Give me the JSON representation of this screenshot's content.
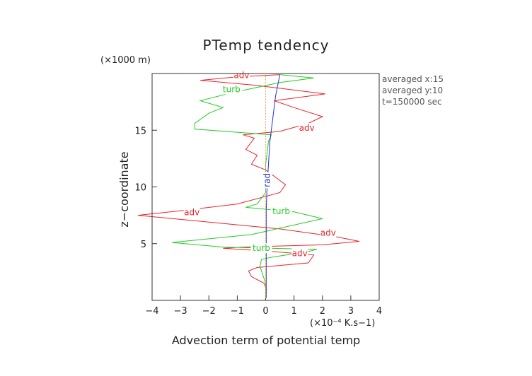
{
  "chart_data": {
    "type": "line",
    "title": "PTemp tendency",
    "xlabel": "Advection term of potential temp",
    "ylabel": "z−coordinate",
    "x_unit": "(×10⁻⁴ K.s−1)",
    "y_unit": "(×1000 m)",
    "xlim": [
      -4,
      4
    ],
    "ylim": [
      0,
      20
    ],
    "x_ticks": [
      -4,
      -3,
      -2,
      -1,
      0,
      1,
      2,
      3,
      4
    ],
    "y_ticks": [
      5,
      10,
      15
    ],
    "side_text": [
      "averaged  x:15",
      "averaged  y:10",
      "t=150000 sec"
    ],
    "series": [
      {
        "name": "adv",
        "color": "#e8242c",
        "points": [
          [
            0,
            0.2
          ],
          [
            0.02,
            1
          ],
          [
            -0.05,
            1.5
          ],
          [
            -0.5,
            2.1
          ],
          [
            -0.6,
            2.6
          ],
          [
            -0.3,
            2.9
          ],
          [
            1.5,
            3.3
          ],
          [
            1.7,
            4.0
          ],
          [
            0.3,
            4.3
          ],
          [
            -1.5,
            4.6
          ],
          [
            -0.8,
            4.7
          ],
          [
            2,
            4.9
          ],
          [
            3.3,
            5.2
          ],
          [
            2.5,
            5.6
          ],
          [
            0.5,
            6.3
          ],
          [
            -2,
            6.9
          ],
          [
            -4.5,
            7.5
          ],
          [
            -3,
            7.9
          ],
          [
            -1,
            8.5
          ],
          [
            0.5,
            9.5
          ],
          [
            0.7,
            10.2
          ],
          [
            0,
            11.5
          ],
          [
            -0.5,
            12
          ],
          [
            -0.3,
            12.8
          ],
          [
            -0.7,
            13.3
          ],
          [
            -0.4,
            14.3
          ],
          [
            -0.8,
            14.6
          ],
          [
            0.5,
            14.9
          ],
          [
            1.5,
            15.6
          ],
          [
            2,
            16.2
          ],
          [
            1,
            17
          ],
          [
            0.3,
            17.6
          ],
          [
            2.1,
            18.2
          ],
          [
            0.5,
            18.7
          ],
          [
            -0.5,
            19
          ],
          [
            -2.3,
            19.4
          ],
          [
            -1,
            19.7
          ],
          [
            0.5,
            19.9
          ]
        ],
        "labels": [
          {
            "text": "adv",
            "x": -2.6,
            "y": 7.75
          },
          {
            "text": "adv",
            "x": 2.2,
            "y": 5.95
          },
          {
            "text": "adv",
            "x": 1.2,
            "y": 4.15
          },
          {
            "text": "adv",
            "x": 1.45,
            "y": 15.2
          },
          {
            "text": "adv",
            "x": -0.85,
            "y": 19.85
          }
        ]
      },
      {
        "name": "turb",
        "color": "#22cc22",
        "points": [
          [
            0,
            0.2
          ],
          [
            0,
            1.5
          ],
          [
            -0.2,
            3
          ],
          [
            -0.15,
            3.6
          ],
          [
            0.2,
            3.8
          ],
          [
            1.5,
            4.3
          ],
          [
            1.8,
            4.5
          ],
          [
            -1.5,
            4.7
          ],
          [
            -3.3,
            5.1
          ],
          [
            -0.5,
            5.8
          ],
          [
            2,
            7.2
          ],
          [
            1,
            7.8
          ],
          [
            -0.7,
            8.2
          ],
          [
            -0.3,
            8.5
          ],
          [
            0,
            9.5
          ],
          [
            0,
            12
          ],
          [
            0.1,
            14
          ],
          [
            0.2,
            14.6
          ],
          [
            -2.5,
            15.1
          ],
          [
            -2.5,
            15.6
          ],
          [
            -2,
            16.5
          ],
          [
            -1.5,
            17
          ],
          [
            -2.3,
            17.6
          ],
          [
            -1.2,
            18.3
          ],
          [
            0.5,
            19.2
          ],
          [
            1.7,
            19.6
          ],
          [
            0.5,
            19.9
          ]
        ],
        "labels": [
          {
            "text": "turb",
            "x": -1.2,
            "y": 18.6
          },
          {
            "text": "turb",
            "x": 0.55,
            "y": 7.85
          },
          {
            "text": "turb",
            "x": -0.15,
            "y": 4.6
          }
        ]
      },
      {
        "name": "rad",
        "color": "#2233cc",
        "points": [
          [
            0.02,
            0.2
          ],
          [
            0.02,
            5
          ],
          [
            0.02,
            8
          ],
          [
            0.05,
            10
          ],
          [
            0.1,
            12
          ],
          [
            0.15,
            14
          ],
          [
            0.25,
            16
          ],
          [
            0.35,
            18
          ],
          [
            0.5,
            19.9
          ]
        ],
        "labels": [
          {
            "text": "rad",
            "x": 0.05,
            "y": 10.6
          }
        ]
      },
      {
        "name": "diff",
        "color": "#e8a24a",
        "dashed": true,
        "points": [
          [
            0,
            0.2
          ],
          [
            0,
            19.9
          ]
        ],
        "labels": []
      }
    ]
  }
}
